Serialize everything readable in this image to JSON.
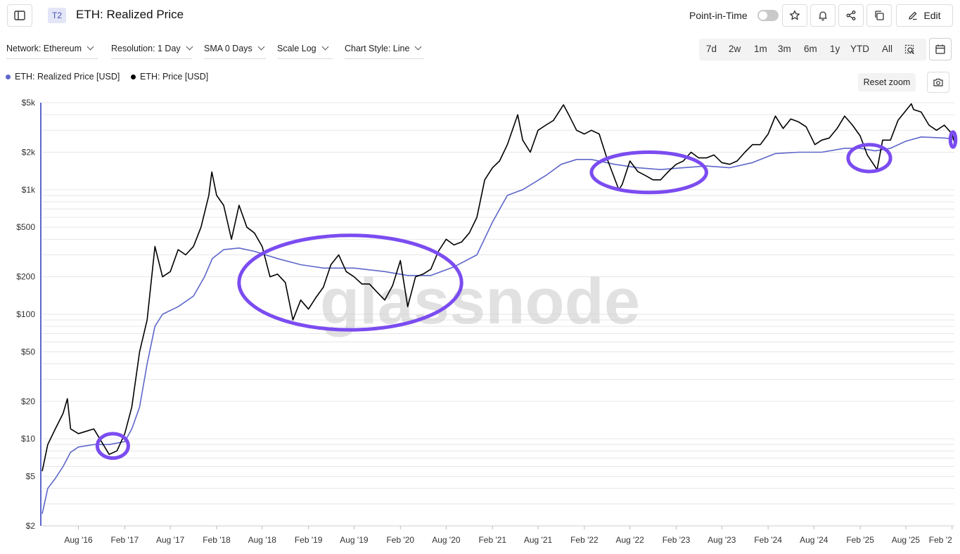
{
  "header": {
    "tier_badge": "T2",
    "title": "ETH: Realized Price",
    "point_in_time_label": "Point-in-Time",
    "point_in_time_enabled": false,
    "edit_label": "Edit"
  },
  "filters": [
    {
      "label": "Network: Ethereum"
    },
    {
      "label": "Resolution: 1 Day"
    },
    {
      "label": "SMA 0 Days"
    },
    {
      "label": "Scale Log"
    },
    {
      "label": "Chart Style: Line"
    }
  ],
  "ranges": [
    "7d",
    "2w",
    "1m",
    "3m",
    "6m",
    "1y",
    "YTD",
    "All"
  ],
  "legend": [
    {
      "label": "ETH: Realized Price [USD]",
      "color": "#5d67c9"
    },
    {
      "label": "ETH: Price [USD]",
      "color": "#000000"
    }
  ],
  "reset_zoom_label": "Reset zoom",
  "watermark": "glassnode",
  "colors": {
    "accent": "#7b4cf0",
    "realized": "#5d67c9",
    "price": "#000000"
  },
  "chart_data": {
    "type": "line",
    "scale": "log",
    "ylim": [
      2,
      5000
    ],
    "y_ticks": [
      {
        "value": 5000,
        "label": "$5k"
      },
      {
        "value": 2000,
        "label": "$2k"
      },
      {
        "value": 1000,
        "label": "$1k"
      },
      {
        "value": 500,
        "label": "$500"
      },
      {
        "value": 200,
        "label": "$200"
      },
      {
        "value": 100,
        "label": "$100"
      },
      {
        "value": 50,
        "label": "$50"
      },
      {
        "value": 20,
        "label": "$20"
      },
      {
        "value": 10,
        "label": "$10"
      },
      {
        "value": 5,
        "label": "$5"
      },
      {
        "value": 2,
        "label": "$2"
      }
    ],
    "xlim": [
      "2016-03-10",
      "2026-02-10"
    ],
    "x_ticks": [
      {
        "date": "2016-08-01",
        "label": "Aug '16"
      },
      {
        "date": "2017-02-01",
        "label": "Feb '17"
      },
      {
        "date": "2017-08-01",
        "label": "Aug '17"
      },
      {
        "date": "2018-02-01",
        "label": "Feb '18"
      },
      {
        "date": "2018-08-01",
        "label": "Aug '18"
      },
      {
        "date": "2019-02-01",
        "label": "Feb '19"
      },
      {
        "date": "2019-08-01",
        "label": "Aug '19"
      },
      {
        "date": "2020-02-01",
        "label": "Feb '20"
      },
      {
        "date": "2020-08-01",
        "label": "Aug '20"
      },
      {
        "date": "2021-02-01",
        "label": "Feb '21"
      },
      {
        "date": "2021-08-01",
        "label": "Aug '21"
      },
      {
        "date": "2022-02-01",
        "label": "Feb '22"
      },
      {
        "date": "2022-08-01",
        "label": "Aug '22"
      },
      {
        "date": "2023-02-01",
        "label": "Feb '23"
      },
      {
        "date": "2023-08-01",
        "label": "Aug '23"
      },
      {
        "date": "2024-02-01",
        "label": "Feb '24"
      },
      {
        "date": "2024-08-01",
        "label": "Aug '24"
      },
      {
        "date": "2025-02-01",
        "label": "Feb '25"
      },
      {
        "date": "2025-08-01",
        "label": "Aug '25"
      },
      {
        "date": "2026-02-01",
        "label": "Feb '2"
      }
    ],
    "series": [
      {
        "name": "ETH: Realized Price [USD]",
        "color": "#5d67c9",
        "points": [
          [
            "2016-03-10",
            2.5
          ],
          [
            "2016-04-01",
            4.0
          ],
          [
            "2016-05-01",
            4.8
          ],
          [
            "2016-06-01",
            6.0
          ],
          [
            "2016-07-01",
            7.8
          ],
          [
            "2016-08-01",
            8.6
          ],
          [
            "2016-10-01",
            9.0
          ],
          [
            "2016-12-01",
            9.0
          ],
          [
            "2017-02-01",
            9.5
          ],
          [
            "2017-03-01",
            12
          ],
          [
            "2017-04-01",
            18
          ],
          [
            "2017-05-01",
            40
          ],
          [
            "2017-06-01",
            80
          ],
          [
            "2017-07-01",
            100
          ],
          [
            "2017-09-01",
            115
          ],
          [
            "2017-11-01",
            140
          ],
          [
            "2017-12-15",
            200
          ],
          [
            "2018-01-15",
            280
          ],
          [
            "2018-03-01",
            330
          ],
          [
            "2018-05-01",
            340
          ],
          [
            "2018-07-01",
            320
          ],
          [
            "2018-10-01",
            280
          ],
          [
            "2019-01-01",
            250
          ],
          [
            "2019-04-01",
            235
          ],
          [
            "2019-08-01",
            235
          ],
          [
            "2019-12-01",
            220
          ],
          [
            "2020-03-01",
            205
          ],
          [
            "2020-06-01",
            205
          ],
          [
            "2020-09-01",
            240
          ],
          [
            "2020-12-01",
            300
          ],
          [
            "2021-02-01",
            550
          ],
          [
            "2021-04-01",
            900
          ],
          [
            "2021-06-01",
            1000
          ],
          [
            "2021-09-01",
            1300
          ],
          [
            "2021-11-01",
            1600
          ],
          [
            "2022-01-01",
            1750
          ],
          [
            "2022-03-01",
            1750
          ],
          [
            "2022-06-01",
            1600
          ],
          [
            "2022-09-01",
            1500
          ],
          [
            "2022-12-01",
            1450
          ],
          [
            "2023-03-01",
            1500
          ],
          [
            "2023-06-01",
            1550
          ],
          [
            "2023-09-01",
            1500
          ],
          [
            "2023-12-01",
            1650
          ],
          [
            "2024-03-01",
            1950
          ],
          [
            "2024-06-01",
            2000
          ],
          [
            "2024-09-01",
            2000
          ],
          [
            "2024-12-01",
            2150
          ],
          [
            "2025-02-01",
            2150
          ],
          [
            "2025-04-01",
            2050
          ],
          [
            "2025-06-01",
            2150
          ],
          [
            "2025-08-01",
            2450
          ],
          [
            "2025-10-01",
            2650
          ],
          [
            "2026-01-01",
            2600
          ],
          [
            "2026-02-10",
            2550
          ]
        ]
      },
      {
        "name": "ETH: Price [USD]",
        "color": "#000000",
        "points": [
          [
            "2016-03-10",
            5.5
          ],
          [
            "2016-04-01",
            9
          ],
          [
            "2016-05-01",
            12
          ],
          [
            "2016-06-01",
            16
          ],
          [
            "2016-06-18",
            21
          ],
          [
            "2016-07-01",
            12
          ],
          [
            "2016-08-01",
            11
          ],
          [
            "2016-10-01",
            12
          ],
          [
            "2016-12-01",
            7.5
          ],
          [
            "2017-01-01",
            8
          ],
          [
            "2017-02-01",
            11
          ],
          [
            "2017-03-01",
            18
          ],
          [
            "2017-04-01",
            50
          ],
          [
            "2017-05-01",
            90
          ],
          [
            "2017-06-01",
            350
          ],
          [
            "2017-07-01",
            200
          ],
          [
            "2017-08-01",
            220
          ],
          [
            "2017-09-01",
            330
          ],
          [
            "2017-10-01",
            300
          ],
          [
            "2017-11-01",
            350
          ],
          [
            "2017-12-01",
            500
          ],
          [
            "2018-01-01",
            900
          ],
          [
            "2018-01-13",
            1390
          ],
          [
            "2018-02-01",
            900
          ],
          [
            "2018-03-01",
            750
          ],
          [
            "2018-04-01",
            400
          ],
          [
            "2018-05-01",
            750
          ],
          [
            "2018-06-01",
            500
          ],
          [
            "2018-07-01",
            450
          ],
          [
            "2018-08-01",
            350
          ],
          [
            "2018-09-01",
            200
          ],
          [
            "2018-10-01",
            210
          ],
          [
            "2018-11-01",
            180
          ],
          [
            "2018-12-01",
            90
          ],
          [
            "2019-01-01",
            130
          ],
          [
            "2019-02-01",
            110
          ],
          [
            "2019-03-01",
            135
          ],
          [
            "2019-04-01",
            165
          ],
          [
            "2019-05-01",
            250
          ],
          [
            "2019-06-01",
            300
          ],
          [
            "2019-07-01",
            220
          ],
          [
            "2019-08-01",
            200
          ],
          [
            "2019-09-01",
            175
          ],
          [
            "2019-10-01",
            175
          ],
          [
            "2019-11-01",
            150
          ],
          [
            "2019-12-01",
            130
          ],
          [
            "2020-01-01",
            170
          ],
          [
            "2020-02-01",
            270
          ],
          [
            "2020-03-01",
            115
          ],
          [
            "2020-04-01",
            200
          ],
          [
            "2020-05-01",
            210
          ],
          [
            "2020-06-01",
            230
          ],
          [
            "2020-07-01",
            320
          ],
          [
            "2020-08-01",
            400
          ],
          [
            "2020-09-01",
            360
          ],
          [
            "2020-10-01",
            380
          ],
          [
            "2020-11-01",
            450
          ],
          [
            "2020-12-01",
            600
          ],
          [
            "2021-01-01",
            1200
          ],
          [
            "2021-02-01",
            1500
          ],
          [
            "2021-03-01",
            1700
          ],
          [
            "2021-04-01",
            2300
          ],
          [
            "2021-05-12",
            4000
          ],
          [
            "2021-06-01",
            2500
          ],
          [
            "2021-07-01",
            2000
          ],
          [
            "2021-08-01",
            3000
          ],
          [
            "2021-09-01",
            3300
          ],
          [
            "2021-10-01",
            3600
          ],
          [
            "2021-11-10",
            4800
          ],
          [
            "2021-12-01",
            4000
          ],
          [
            "2022-01-01",
            3000
          ],
          [
            "2022-02-01",
            2800
          ],
          [
            "2022-03-01",
            3000
          ],
          [
            "2022-04-01",
            2800
          ],
          [
            "2022-05-01",
            1800
          ],
          [
            "2022-06-18",
            1000
          ],
          [
            "2022-07-01",
            1100
          ],
          [
            "2022-08-01",
            1700
          ],
          [
            "2022-09-01",
            1400
          ],
          [
            "2022-10-01",
            1300
          ],
          [
            "2022-11-01",
            1200
          ],
          [
            "2022-12-01",
            1200
          ],
          [
            "2023-01-01",
            1400
          ],
          [
            "2023-02-01",
            1600
          ],
          [
            "2023-03-01",
            1700
          ],
          [
            "2023-04-01",
            2000
          ],
          [
            "2023-05-01",
            1800
          ],
          [
            "2023-06-01",
            1800
          ],
          [
            "2023-07-01",
            1900
          ],
          [
            "2023-08-01",
            1650
          ],
          [
            "2023-09-01",
            1600
          ],
          [
            "2023-10-01",
            1700
          ],
          [
            "2023-11-01",
            2000
          ],
          [
            "2023-12-01",
            2300
          ],
          [
            "2024-01-01",
            2300
          ],
          [
            "2024-02-01",
            2800
          ],
          [
            "2024-03-01",
            3900
          ],
          [
            "2024-04-01",
            3100
          ],
          [
            "2024-05-01",
            3700
          ],
          [
            "2024-06-01",
            3500
          ],
          [
            "2024-07-01",
            3200
          ],
          [
            "2024-08-05",
            2300
          ],
          [
            "2024-09-01",
            2500
          ],
          [
            "2024-10-01",
            2600
          ],
          [
            "2024-11-01",
            3100
          ],
          [
            "2024-12-01",
            3900
          ],
          [
            "2025-01-01",
            3300
          ],
          [
            "2025-02-01",
            2700
          ],
          [
            "2025-03-01",
            1900
          ],
          [
            "2025-04-09",
            1450
          ],
          [
            "2025-05-01",
            2500
          ],
          [
            "2025-06-01",
            2500
          ],
          [
            "2025-07-01",
            3600
          ],
          [
            "2025-08-23",
            4900
          ],
          [
            "2025-09-01",
            4400
          ],
          [
            "2025-10-01",
            4200
          ],
          [
            "2025-11-01",
            3300
          ],
          [
            "2025-12-01",
            3000
          ],
          [
            "2026-01-01",
            3300
          ],
          [
            "2026-02-01",
            2800
          ],
          [
            "2026-02-10",
            2400
          ]
        ]
      }
    ],
    "annotations": [
      {
        "shape": "ellipse",
        "from": "2016-10-15",
        "to": "2017-02-15",
        "y_from": 7,
        "y_to": 11
      },
      {
        "shape": "ellipse",
        "from": "2018-05-01",
        "to": "2020-10-01",
        "y_from": 75,
        "y_to": 430
      },
      {
        "shape": "ellipse",
        "from": "2022-03-01",
        "to": "2023-06-01",
        "y_from": 950,
        "y_to": 2000
      },
      {
        "shape": "ellipse",
        "from": "2024-12-15",
        "to": "2025-06-01",
        "y_from": 1400,
        "y_to": 2300
      },
      {
        "shape": "ellipse",
        "from": "2026-01-25",
        "to": "2026-02-15",
        "y_from": 2200,
        "y_to": 2900
      }
    ]
  }
}
